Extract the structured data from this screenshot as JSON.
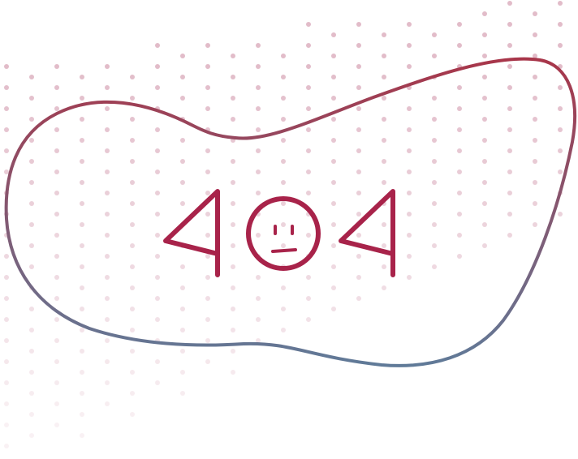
{
  "error_illustration": {
    "code": "404",
    "digits": [
      "4",
      "0",
      "4"
    ],
    "face_icon": "sad-face-icon",
    "colors": {
      "digit_stroke": "#a8234a",
      "blob_gradient_start": "#a8364a",
      "blob_gradient_end": "#607a98",
      "dot_fill": "#e0b8c6",
      "background": "#ffffff"
    }
  }
}
